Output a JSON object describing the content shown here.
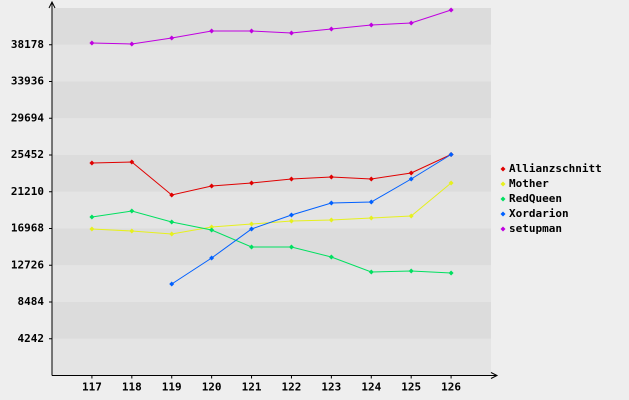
{
  "chart_data": {
    "type": "line",
    "x": [
      117,
      118,
      119,
      120,
      121,
      122,
      123,
      124,
      125,
      126
    ],
    "xlim": [
      116,
      127
    ],
    "xticks": [
      117,
      118,
      119,
      120,
      121,
      122,
      123,
      124,
      125,
      126
    ],
    "ylim": [
      0,
      42420
    ],
    "yticks": [
      4242,
      8484,
      12726,
      16968,
      21210,
      25452,
      29694,
      33936,
      38178
    ],
    "series": [
      {
        "name": "Allianzschnitt",
        "color": "#e00000",
        "values": [
          24528,
          24644,
          20835,
          21874,
          22220,
          22682,
          22913,
          22682,
          23374,
          25510
        ]
      },
      {
        "name": "Mother",
        "color": "#e6f01e",
        "values": [
          16910,
          16679,
          16333,
          17141,
          17487,
          17834,
          17949,
          18180,
          18411,
          22220
        ]
      },
      {
        "name": "RedQueen",
        "color": "#00e060",
        "values": [
          18295,
          18988,
          17718,
          16795,
          14832,
          14832,
          13678,
          11947,
          12062,
          11832
        ]
      },
      {
        "name": "Xordarion",
        "color": "#0060ff",
        "values": [
          null,
          null,
          10562,
          13563,
          16910,
          18526,
          19911,
          20026,
          22682,
          25510
        ]
      },
      {
        "name": "setupman",
        "color": "#c000e0",
        "values": [
          38379,
          38264,
          38956,
          39764,
          39764,
          39533,
          39995,
          40457,
          40688,
          42189
        ]
      }
    ],
    "legend": "right"
  }
}
